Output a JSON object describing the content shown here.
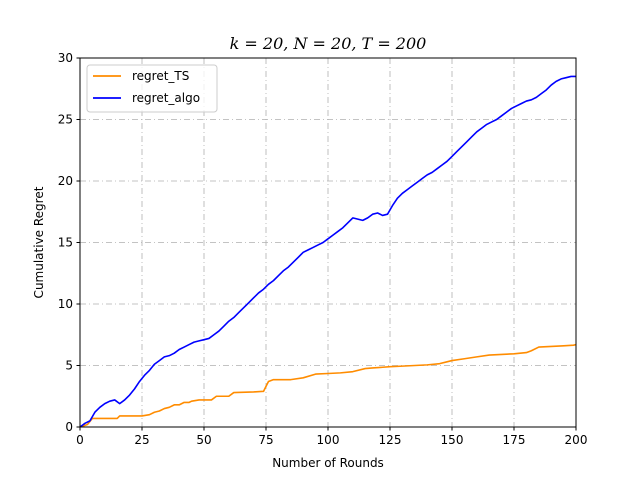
{
  "chart_data": {
    "type": "line",
    "title": "k = 20, N = 20, T = 200",
    "xlabel": "Number of Rounds",
    "ylabel": "Cumulative Regret",
    "xlim": [
      0,
      200
    ],
    "ylim": [
      0,
      30
    ],
    "xticks": [
      0,
      25,
      50,
      75,
      100,
      125,
      150,
      175,
      200
    ],
    "yticks": [
      0,
      5,
      10,
      15,
      20,
      25,
      30
    ],
    "grid": true,
    "legend_position": "top-left",
    "series": [
      {
        "name": "regret_TS",
        "color": "#ff8c00",
        "x": [
          0,
          3,
          5,
          15,
          16,
          25,
          28,
          30,
          32,
          34,
          36,
          38,
          40,
          42,
          44,
          45,
          48,
          50,
          53,
          55,
          60,
          62,
          70,
          74,
          75,
          76,
          78,
          85,
          90,
          95,
          100,
          105,
          110,
          115,
          118,
          125,
          130,
          135,
          140,
          145,
          148,
          150,
          155,
          160,
          165,
          170,
          175,
          180,
          182,
          185,
          190,
          195,
          199,
          200
        ],
        "y": [
          0,
          0.2,
          0.7,
          0.7,
          0.9,
          0.9,
          1.0,
          1.2,
          1.3,
          1.5,
          1.6,
          1.8,
          1.8,
          2.0,
          2.0,
          2.1,
          2.2,
          2.2,
          2.2,
          2.5,
          2.5,
          2.8,
          2.85,
          2.9,
          3.3,
          3.7,
          3.85,
          3.85,
          4.0,
          4.3,
          4.35,
          4.4,
          4.5,
          4.75,
          4.8,
          4.9,
          4.95,
          5.0,
          5.05,
          5.15,
          5.3,
          5.4,
          5.55,
          5.7,
          5.85,
          5.9,
          5.95,
          6.05,
          6.2,
          6.5,
          6.55,
          6.6,
          6.65,
          6.7
        ]
      },
      {
        "name": "regret_algo",
        "color": "#0000ff",
        "x": [
          0,
          2,
          4,
          6,
          8,
          10,
          12,
          14,
          16,
          18,
          20,
          22,
          24,
          26,
          28,
          30,
          32,
          34,
          36,
          38,
          40,
          42,
          44,
          46,
          48,
          50,
          52,
          54,
          56,
          58,
          60,
          62,
          64,
          66,
          68,
          70,
          72,
          74,
          76,
          78,
          80,
          82,
          84,
          86,
          88,
          90,
          92,
          94,
          96,
          98,
          100,
          102,
          104,
          106,
          108,
          110,
          112,
          114,
          116,
          118,
          120,
          122,
          124,
          126,
          128,
          130,
          132,
          134,
          136,
          138,
          140,
          142,
          144,
          146,
          148,
          150,
          152,
          154,
          156,
          158,
          160,
          162,
          164,
          166,
          168,
          170,
          172,
          174,
          176,
          178,
          180,
          182,
          184,
          186,
          188,
          190,
          192,
          194,
          196,
          198,
          200
        ],
        "y": [
          0,
          0.3,
          0.5,
          1.2,
          1.6,
          1.9,
          2.1,
          2.2,
          1.9,
          2.2,
          2.6,
          3.1,
          3.7,
          4.2,
          4.6,
          5.1,
          5.4,
          5.7,
          5.8,
          6.0,
          6.3,
          6.5,
          6.7,
          6.9,
          7.0,
          7.1,
          7.2,
          7.5,
          7.8,
          8.2,
          8.6,
          8.9,
          9.3,
          9.7,
          10.1,
          10.5,
          10.9,
          11.2,
          11.6,
          11.9,
          12.3,
          12.7,
          13.0,
          13.4,
          13.8,
          14.2,
          14.4,
          14.6,
          14.8,
          15.0,
          15.3,
          15.6,
          15.9,
          16.2,
          16.6,
          17.0,
          16.9,
          16.8,
          17.0,
          17.3,
          17.4,
          17.2,
          17.3,
          18.0,
          18.6,
          19.0,
          19.3,
          19.6,
          19.9,
          20.2,
          20.5,
          20.7,
          21.0,
          21.3,
          21.6,
          22.0,
          22.4,
          22.8,
          23.2,
          23.6,
          24.0,
          24.3,
          24.6,
          24.8,
          25.0,
          25.3,
          25.6,
          25.9,
          26.1,
          26.3,
          26.5,
          26.6,
          26.8,
          27.1,
          27.4,
          27.8,
          28.1,
          28.3,
          28.4,
          28.5,
          28.5
        ]
      }
    ]
  }
}
